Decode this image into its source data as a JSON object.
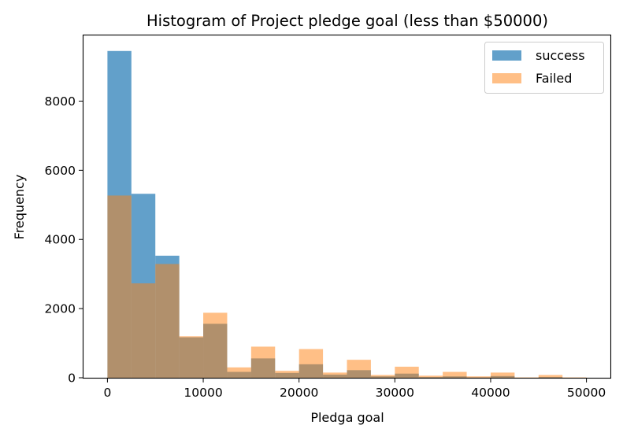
{
  "chart_data": {
    "type": "bar",
    "title": "Histogram of Project pledge goal (less than $50000)",
    "xlabel": "Pledga goal",
    "ylabel": "Frequency",
    "xlim": [
      -2500,
      52500
    ],
    "ylim": [
      0,
      9900
    ],
    "xticks": [
      0,
      10000,
      20000,
      30000,
      40000,
      50000
    ],
    "yticks": [
      0,
      2000,
      4000,
      6000,
      8000
    ],
    "bin_width": 2500,
    "bin_starts": [
      0,
      2500,
      5000,
      7500,
      10000,
      12500,
      15000,
      17500,
      20000,
      22500,
      25000,
      27500,
      30000,
      32500,
      35000,
      37500,
      40000,
      42500,
      45000,
      47500
    ],
    "legend_position": "top-right",
    "series": [
      {
        "name": "success",
        "color": "#1f77b4",
        "opacity": 0.7,
        "values": [
          9450,
          5320,
          3530,
          1170,
          1560,
          170,
          560,
          140,
          390,
          90,
          220,
          40,
          120,
          20,
          40,
          10,
          50,
          0,
          20,
          0
        ]
      },
      {
        "name": "Failed",
        "color": "#ff7f0e",
        "opacity": 0.5,
        "values": [
          5270,
          2730,
          3290,
          1200,
          1880,
          300,
          900,
          200,
          830,
          150,
          520,
          80,
          320,
          60,
          170,
          40,
          150,
          10,
          80,
          10
        ]
      }
    ]
  }
}
